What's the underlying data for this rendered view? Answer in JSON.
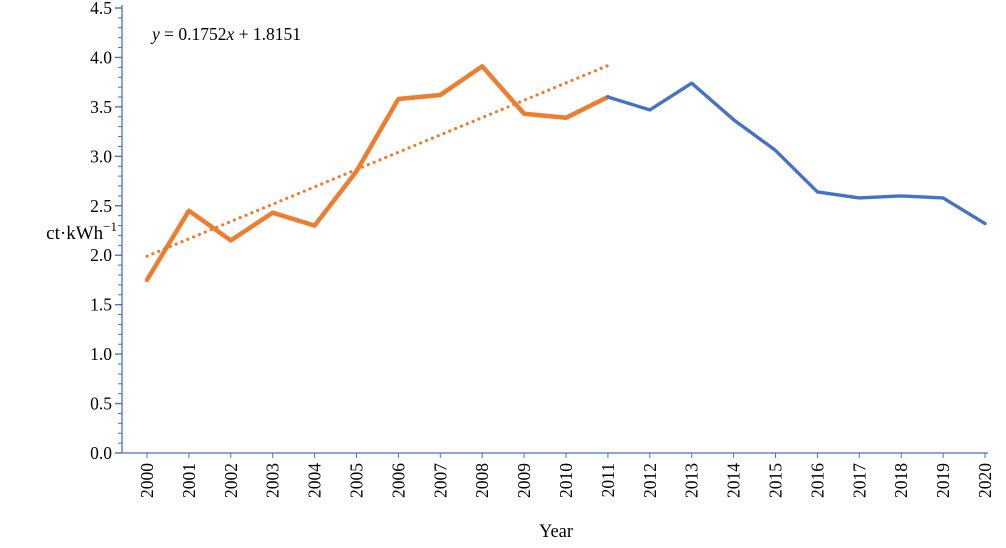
{
  "chart_data": {
    "type": "line",
    "title": "",
    "xlabel": "Year",
    "ylabel_base": "ct·kWh",
    "ylabel_sup": "−1",
    "ylim": [
      0,
      4.5
    ],
    "ytick_step": 0.5,
    "yticks": [
      "0.0",
      "0.5",
      "1.0",
      "1.5",
      "2.0",
      "2.5",
      "3.0",
      "3.5",
      "4.0",
      "4.5"
    ],
    "categories": [
      "2000",
      "2001",
      "2002",
      "2003",
      "2004",
      "2005",
      "2006",
      "2007",
      "2008",
      "2009",
      "2010",
      "2011",
      "2012",
      "2013",
      "2014",
      "2015",
      "2016",
      "2017",
      "2018",
      "2019",
      "2020"
    ],
    "axis_color": "#4472C4",
    "grid": "off",
    "legend": "none",
    "series": [
      {
        "name": "2000–2011 segment",
        "key": "orange-2000-2011",
        "color": "#ED7D31",
        "x_start_index": 0,
        "values": [
          1.75,
          2.45,
          2.15,
          2.43,
          2.3,
          2.85,
          3.58,
          3.62,
          3.91,
          3.43,
          3.39,
          3.6
        ]
      },
      {
        "name": "2011–2020 segment",
        "key": "blue-2011-2020",
        "color": "#4472C4",
        "x_start_index": 11,
        "values": [
          3.6,
          3.47,
          3.74,
          3.37,
          3.06,
          2.64,
          2.58,
          2.6,
          2.58,
          2.32
        ]
      }
    ],
    "trendline": {
      "text": "y = 0.1752x + 1.8151",
      "var1": "y",
      "mid": " = 0.1752",
      "var2": "x",
      "tail": " + 1.8151",
      "slope": 0.1752,
      "intercept": 1.8151,
      "eq_x_at_first_category": 1,
      "start_category_index": 0,
      "end_category_index": 11,
      "color": "#ED7D31",
      "style": "dotted"
    }
  }
}
